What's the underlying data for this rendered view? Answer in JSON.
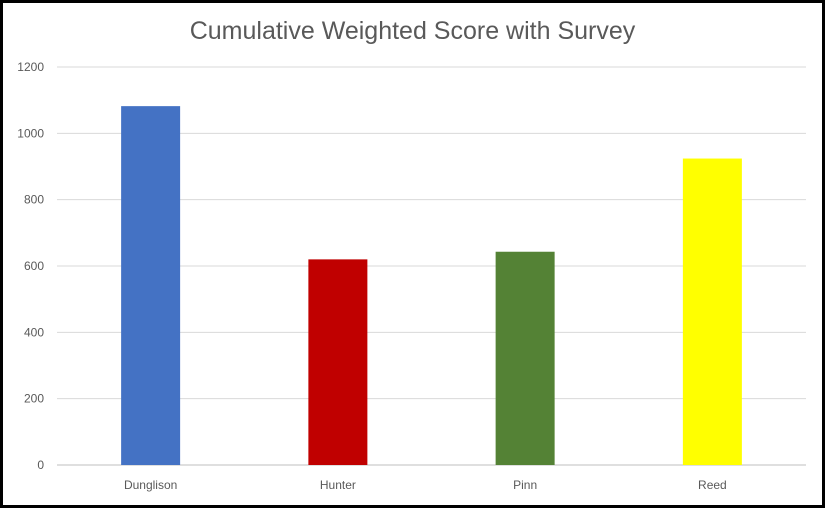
{
  "chart_data": {
    "type": "bar",
    "title": "Cumulative Weighted Score with Survey",
    "xlabel": "",
    "ylabel": "",
    "categories": [
      "Dunglison",
      "Hunter",
      "Pinn",
      "Reed"
    ],
    "values": [
      1082,
      620,
      643,
      924
    ],
    "colors": [
      "#4472C4",
      "#C00000",
      "#548235",
      "#FFFF00"
    ],
    "ylim": [
      0,
      1200
    ],
    "yticks": [
      "0",
      "200",
      "400",
      "600",
      "800",
      "1000",
      "1200"
    ],
    "grid": true,
    "legend": "none"
  }
}
